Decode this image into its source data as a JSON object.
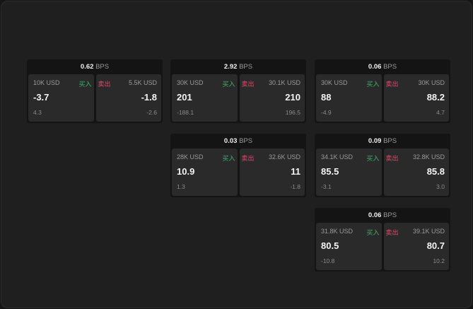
{
  "colors": {
    "buy": "#3bb36a",
    "sell": "#e04a6a"
  },
  "labels": {
    "buy": "买入",
    "sell": "卖出",
    "unit": "BPS"
  },
  "cards": [
    {
      "spread": "0.62",
      "buy": {
        "size": "10K USD",
        "price": "-3.7",
        "change": "4.3"
      },
      "sell": {
        "size": "5.5K USD",
        "price": "-1.8",
        "change": "-2.6"
      }
    },
    {
      "spread": "2.92",
      "buy": {
        "size": "30K USD",
        "price": "201",
        "change": "-188.1"
      },
      "sell": {
        "size": "30.1K USD",
        "price": "210",
        "change": "196.5"
      }
    },
    {
      "spread": "0.06",
      "buy": {
        "size": "30K USD",
        "price": "88",
        "change": "-4.9"
      },
      "sell": {
        "size": "30K USD",
        "price": "88.2",
        "change": "4.7"
      }
    },
    {
      "spread": "0.03",
      "buy": {
        "size": "28K USD",
        "price": "10.9",
        "change": "1.3"
      },
      "sell": {
        "size": "32.6K USD",
        "price": "11",
        "change": "-1.8"
      }
    },
    {
      "spread": "0.09",
      "buy": {
        "size": "34.1K USD",
        "price": "85.5",
        "change": "-3.1"
      },
      "sell": {
        "size": "32.8K USD",
        "price": "85.8",
        "change": "3.0"
      }
    },
    {
      "spread": "0.06",
      "buy": {
        "size": "31.8K USD",
        "price": "80.5",
        "change": "-10.8"
      },
      "sell": {
        "size": "39.1K USD",
        "price": "80.7",
        "change": "10.2"
      }
    }
  ]
}
